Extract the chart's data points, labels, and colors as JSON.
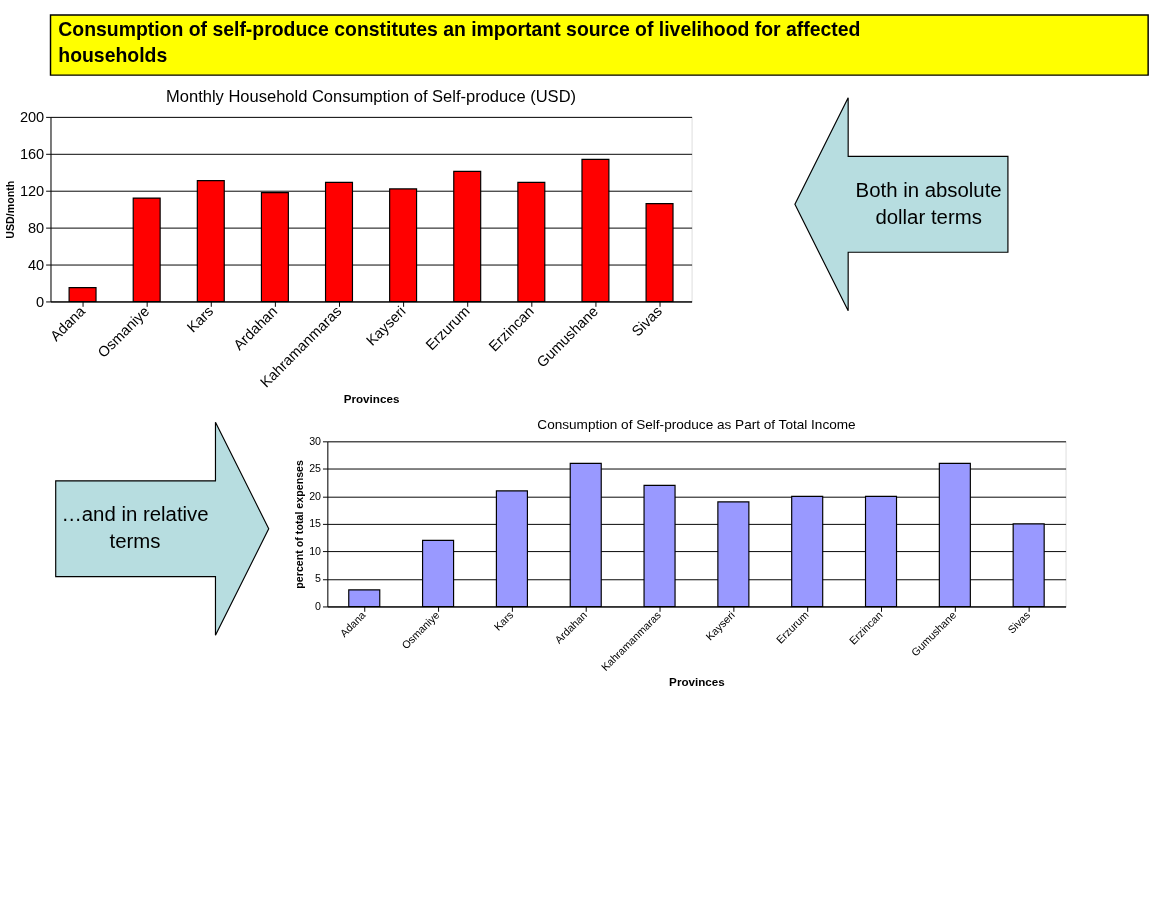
{
  "chart_data": [
    {
      "type": "bar",
      "title": "Monthly Household Consumption of Self-produce (USD)",
      "xlabel": "Provinces",
      "ylabel": "USD/month",
      "categories": [
        "Adana",
        "Osmaniye",
        "Kars",
        "Ardahan",
        "Kahramanmaras",
        "Kayseri",
        "Erzurum",
        "Erzincan",
        "Gumushane",
        "Sivas"
      ],
      "values": [
        15,
        112,
        131,
        118,
        129,
        122,
        141,
        129,
        154,
        106
      ],
      "color": "#ff0000",
      "ylim": [
        0,
        200
      ],
      "yticks": [
        0,
        40,
        80,
        120,
        160,
        200
      ],
      "grid": "y",
      "annotations": [
        "Consumption of self-produce constitutes an important source of livelihood for affected households",
        "Both in absolute dollar terms"
      ]
    },
    {
      "type": "bar",
      "title": "Consumption of Self-produce as Part of Total Income",
      "xlabel": "Provinces",
      "ylabel": "percent of total expenses",
      "categories": [
        "Adana",
        "Osmaniye",
        "Kars",
        "Ardahan",
        "Kahramanmaras",
        "Kayseri",
        "Erzurum",
        "Erzincan",
        "Gumushane",
        "Sivas"
      ],
      "values": [
        3,
        12,
        21,
        26,
        22,
        19,
        20,
        20,
        26,
        15
      ],
      "color": "#9999ff",
      "ylim": [
        0,
        30
      ],
      "yticks": [
        0,
        5,
        10,
        15,
        20,
        25,
        30
      ],
      "grid": "y",
      "annotations": [
        "…and in relative terms"
      ]
    }
  ]
}
